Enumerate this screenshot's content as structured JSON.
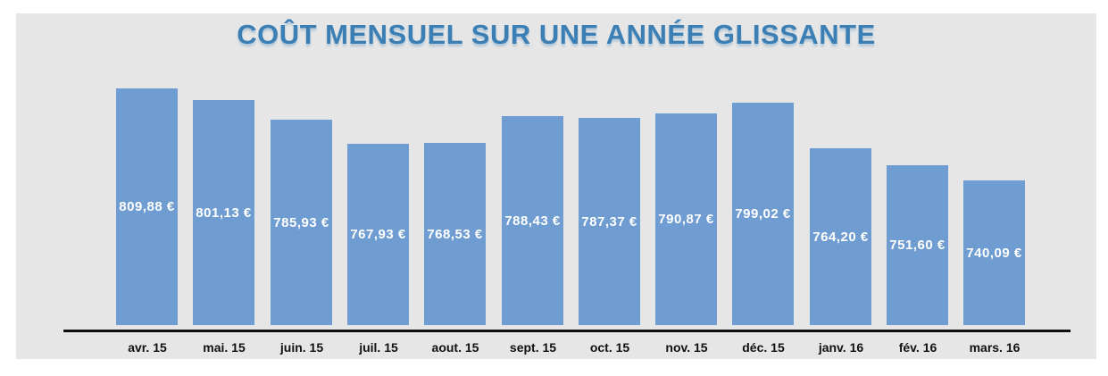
{
  "page": {
    "background": "#ffffff",
    "panel_background": "#e6e6e6"
  },
  "chart_data": {
    "type": "bar",
    "title": "COÛT MENSUEL SUR UNE ANNÉE GLISSANTE",
    "title_color": "#3b7fb5",
    "bar_color": "#6f9cd1",
    "value_label_color": "#ffffff",
    "axis_line_color": "#0e0e0e",
    "category_label_color": "#111111",
    "categories": [
      "avr. 15",
      "mai. 15",
      "juin. 15",
      "juil. 15",
      "aout. 15",
      "sept. 15",
      "oct. 15",
      "nov. 15",
      "déc. 15",
      "janv. 16",
      "fév. 16",
      "mars. 16"
    ],
    "values": [
      809.88,
      801.13,
      785.93,
      767.93,
      768.53,
      788.43,
      787.37,
      790.87,
      799.02,
      764.2,
      751.6,
      740.09
    ],
    "value_labels": [
      "809,88 €",
      "801,13 €",
      "785,93 €",
      "767,93 €",
      "768,53 €",
      "788,43 €",
      "787,37 €",
      "790,87 €",
      "799,02 €",
      "764,20 €",
      "751,60 €",
      "740,09 €"
    ],
    "xlabel": "",
    "ylabel": "",
    "ylim": [
      631,
      815
    ],
    "grid": false,
    "legend": "none",
    "value_labels_position": "center-of-bar",
    "baseline": "bars do not touch axis line; axis drawn slightly below bars"
  }
}
